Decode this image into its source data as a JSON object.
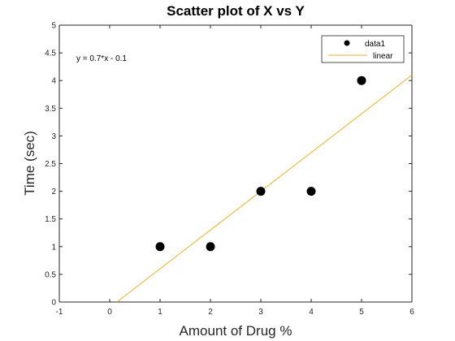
{
  "chart_data": {
    "type": "scatter",
    "title": "Scatter plot of X vs Y",
    "xlabel": "Amount of Drug %",
    "ylabel": "Time (sec)",
    "xlim": [
      -1,
      6
    ],
    "ylim": [
      0,
      5
    ],
    "xticks": [
      -1,
      0,
      1,
      2,
      3,
      4,
      5,
      6
    ],
    "yticks": [
      0,
      0.5,
      1,
      1.5,
      2,
      2.5,
      3,
      3.5,
      4,
      4.5,
      5
    ],
    "xtick_labels": [
      "-1",
      "0",
      "1",
      "2",
      "3",
      "4",
      "5",
      "6"
    ],
    "ytick_labels": [
      "0",
      "0.5",
      "1",
      "1.5",
      "2",
      "2.5",
      "3",
      "3.5",
      "4",
      "4.5",
      "5"
    ],
    "grid": false,
    "legend_position": "top-right",
    "series": [
      {
        "name": "data1",
        "kind": "scatter",
        "color": "#000000",
        "x": [
          1,
          2,
          3,
          4,
          5
        ],
        "y": [
          1,
          1,
          2,
          2,
          4
        ]
      },
      {
        "name": "linear",
        "kind": "line",
        "color": "#EDB120",
        "slope": 0.7,
        "intercept": -0.1,
        "x": [
          0.142857,
          6
        ],
        "y": [
          0,
          4.1
        ]
      }
    ],
    "annotation": "y = 0.7*x - 0.1"
  }
}
